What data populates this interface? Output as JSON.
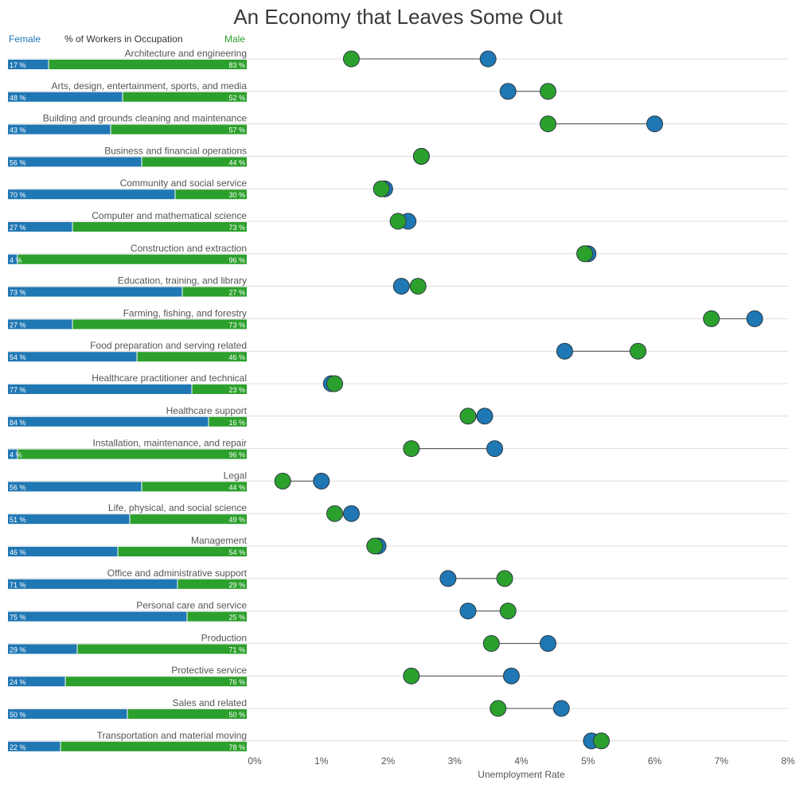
{
  "chart_data": {
    "type": "dumbbell",
    "title": "An Economy that Leaves Some Out",
    "left_panel": {
      "female_label": "Female",
      "share_label": "% of Workers in Occupation",
      "male_label": "Male"
    },
    "xlabel": "Unemployment Rate",
    "xlim": [
      0,
      8
    ],
    "xticks": [
      "0%",
      "1%",
      "2%",
      "3%",
      "4%",
      "5%",
      "6%",
      "7%",
      "8%"
    ],
    "grid": "horizontal",
    "colors": {
      "female": "#1f77b4",
      "male": "#2ca02c"
    },
    "series_keys": [
      "female",
      "male"
    ],
    "rows": [
      {
        "occupation": "Architecture and engineering",
        "female_pct": 17,
        "male_pct": 83,
        "female_label": "17 %",
        "male_label": "83 %",
        "female_rate": 3.5,
        "male_rate": 1.45
      },
      {
        "occupation": "Arts, design, entertainment, sports, and media",
        "female_pct": 48,
        "male_pct": 52,
        "female_label": "48 %",
        "male_label": "52 %",
        "female_rate": 3.8,
        "male_rate": 4.4
      },
      {
        "occupation": "Building and grounds cleaning and maintenance",
        "female_pct": 43,
        "male_pct": 57,
        "female_label": "43 %",
        "male_label": "57 %",
        "female_rate": 6.0,
        "male_rate": 4.4
      },
      {
        "occupation": "Business and financial operations",
        "female_pct": 56,
        "male_pct": 44,
        "female_label": "56 %",
        "male_label": "44 %",
        "female_rate": 2.5,
        "male_rate": 2.5
      },
      {
        "occupation": "Community and social service",
        "female_pct": 70,
        "male_pct": 30,
        "female_label": "70 %",
        "male_label": "30 %",
        "female_rate": 1.95,
        "male_rate": 1.9
      },
      {
        "occupation": "Computer and mathematical science",
        "female_pct": 27,
        "male_pct": 73,
        "female_label": "27 %",
        "male_label": "73 %",
        "female_rate": 2.3,
        "male_rate": 2.15
      },
      {
        "occupation": "Construction and extraction",
        "female_pct": 4,
        "male_pct": 96,
        "female_label": "4 %",
        "male_label": "96 %",
        "female_rate": 5.0,
        "male_rate": 4.95
      },
      {
        "occupation": "Education, training, and library",
        "female_pct": 73,
        "male_pct": 27,
        "female_label": "73 %",
        "male_label": "27 %",
        "female_rate": 2.2,
        "male_rate": 2.45
      },
      {
        "occupation": "Farming, fishing, and forestry",
        "female_pct": 27,
        "male_pct": 73,
        "female_label": "27 %",
        "male_label": "73 %",
        "female_rate": 7.5,
        "male_rate": 6.85
      },
      {
        "occupation": "Food preparation and serving related",
        "female_pct": 54,
        "male_pct": 46,
        "female_label": "54 %",
        "male_label": "46 %",
        "female_rate": 4.65,
        "male_rate": 5.75
      },
      {
        "occupation": "Healthcare practitioner and technical",
        "female_pct": 77,
        "male_pct": 23,
        "female_label": "77 %",
        "male_label": "23 %",
        "female_rate": 1.15,
        "male_rate": 1.2
      },
      {
        "occupation": "Healthcare support",
        "female_pct": 84,
        "male_pct": 16,
        "female_label": "84 %",
        "male_label": "16 %",
        "female_rate": 3.45,
        "male_rate": 3.2
      },
      {
        "occupation": "Installation, maintenance, and repair",
        "female_pct": 4,
        "male_pct": 96,
        "female_label": "4 %",
        "male_label": "96 %",
        "female_rate": 3.6,
        "male_rate": 2.35
      },
      {
        "occupation": "Legal",
        "female_pct": 56,
        "male_pct": 44,
        "female_label": "56 %",
        "male_label": "44 %",
        "female_rate": 1.0,
        "male_rate": 0.42
      },
      {
        "occupation": "Life, physical, and social science",
        "female_pct": 51,
        "male_pct": 49,
        "female_label": "51 %",
        "male_label": "49 %",
        "female_rate": 1.45,
        "male_rate": 1.2
      },
      {
        "occupation": "Management",
        "female_pct": 46,
        "male_pct": 54,
        "female_label": "46 %",
        "male_label": "54 %",
        "female_rate": 1.85,
        "male_rate": 1.8
      },
      {
        "occupation": "Office and administrative support",
        "female_pct": 71,
        "male_pct": 29,
        "female_label": "71 %",
        "male_label": "29 %",
        "female_rate": 2.9,
        "male_rate": 3.75
      },
      {
        "occupation": "Personal care and service",
        "female_pct": 75,
        "male_pct": 25,
        "female_label": "75 %",
        "male_label": "25 %",
        "female_rate": 3.2,
        "male_rate": 3.8
      },
      {
        "occupation": "Production",
        "female_pct": 29,
        "male_pct": 71,
        "female_label": "29 %",
        "male_label": "71 %",
        "female_rate": 4.4,
        "male_rate": 3.55
      },
      {
        "occupation": "Protective service",
        "female_pct": 24,
        "male_pct": 76,
        "female_label": "24 %",
        "male_label": "76 %",
        "female_rate": 3.85,
        "male_rate": 2.35
      },
      {
        "occupation": "Sales and related",
        "female_pct": 50,
        "male_pct": 50,
        "female_label": "50 %",
        "male_label": "50 %",
        "female_rate": 4.6,
        "male_rate": 3.65
      },
      {
        "occupation": "Transportation and material moving",
        "female_pct": 22,
        "male_pct": 78,
        "female_label": "22 %",
        "male_label": "78 %",
        "female_rate": 5.05,
        "male_rate": 5.2
      }
    ]
  }
}
